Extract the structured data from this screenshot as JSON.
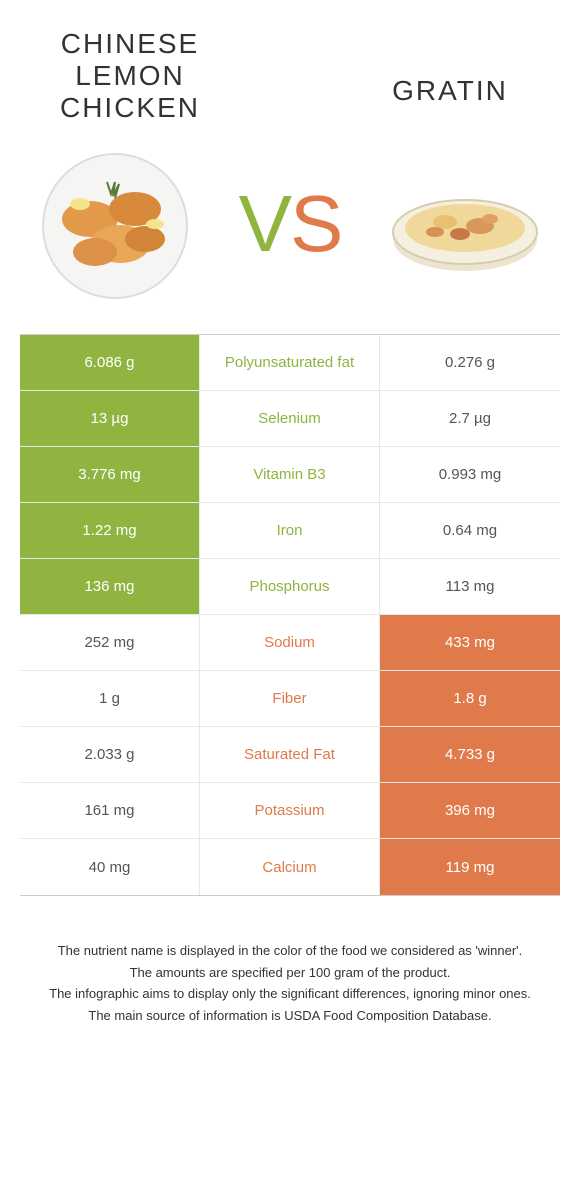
{
  "foods": {
    "left_name": "CHINESE LEMON CHICKEN",
    "right_name": "GRATIN"
  },
  "vs": {
    "v": "V",
    "s": "S"
  },
  "colors": {
    "green": "#8fb440",
    "orange": "#e17a4a",
    "border": "#e8e8e8",
    "text": "#333333"
  },
  "rows": [
    {
      "left": "6.086 g",
      "label": "Polyunsaturated fat",
      "right": "0.276 g",
      "winner": "left"
    },
    {
      "left": "13 µg",
      "label": "Selenium",
      "right": "2.7 µg",
      "winner": "left"
    },
    {
      "left": "3.776 mg",
      "label": "Vitamin B3",
      "right": "0.993 mg",
      "winner": "left"
    },
    {
      "left": "1.22 mg",
      "label": "Iron",
      "right": "0.64 mg",
      "winner": "left"
    },
    {
      "left": "136 mg",
      "label": "Phosphorus",
      "right": "113 mg",
      "winner": "left"
    },
    {
      "left": "252 mg",
      "label": "Sodium",
      "right": "433 mg",
      "winner": "right"
    },
    {
      "left": "1 g",
      "label": "Fiber",
      "right": "1.8 g",
      "winner": "right"
    },
    {
      "left": "2.033 g",
      "label": "Saturated Fat",
      "right": "4.733 g",
      "winner": "right"
    },
    {
      "left": "161 mg",
      "label": "Potassium",
      "right": "396 mg",
      "winner": "right"
    },
    {
      "left": "40 mg",
      "label": "Calcium",
      "right": "119 mg",
      "winner": "right"
    }
  ],
  "footer": {
    "l1": "The nutrient name is displayed in the color of the food we considered as 'winner'.",
    "l2": "The amounts are specified per 100 gram of the product.",
    "l3": "The infographic aims to display only the significant differences, ignoring minor ones.",
    "l4": "The main source of information is USDA Food Composition Database."
  }
}
